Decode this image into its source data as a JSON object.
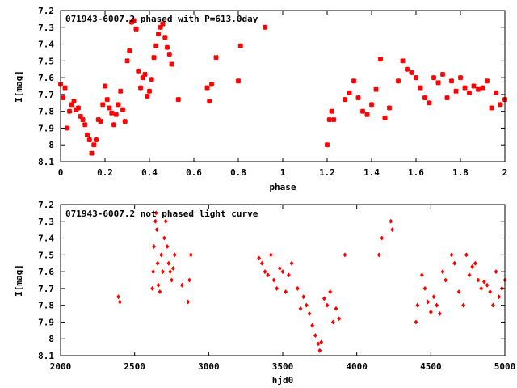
{
  "chart_data": [
    {
      "type": "scatter",
      "title": "071943-6007.2 phased with P=613.0day",
      "xlabel": "phase",
      "ylabel": "I[mag]",
      "xlim": [
        0,
        2
      ],
      "ylim": [
        7.2,
        8.1
      ],
      "y_inverted": true,
      "grid": false,
      "x_ticks": [
        "0",
        "0.2",
        "0.4",
        "0.6",
        "0.8",
        "1",
        "1.2",
        "1.4",
        "1.6",
        "1.8",
        "2"
      ],
      "y_ticks": [
        "7.2",
        "7.3",
        "7.4",
        "7.5",
        "7.6",
        "7.7",
        "7.8",
        "7.9",
        "8",
        "8.1"
      ],
      "marker_color": "#ff0000",
      "marker": "asterisk",
      "series": [
        {
          "x": [
            0.0,
            0.01,
            0.02,
            0.03,
            0.04,
            0.05,
            0.06,
            0.07,
            0.08,
            0.09,
            0.1,
            0.11,
            0.12,
            0.13,
            0.14,
            0.15,
            0.16,
            0.17,
            0.18,
            0.19,
            0.2,
            0.21,
            0.22,
            0.23,
            0.24,
            0.25,
            0.26,
            0.27,
            0.28,
            0.29,
            0.3,
            0.31,
            0.32,
            0.33,
            0.34,
            0.35,
            0.36,
            0.37,
            0.38,
            0.39,
            0.4,
            0.41,
            0.42,
            0.43,
            0.44,
            0.45,
            0.46,
            0.47,
            0.48,
            0.49,
            0.5,
            0.53,
            0.66,
            0.67,
            0.68,
            0.7,
            0.8,
            0.81,
            0.92,
            1.2,
            1.21,
            1.22,
            1.23,
            1.28,
            1.3,
            1.32,
            1.34,
            1.36,
            1.38,
            1.4,
            1.42,
            1.44,
            1.46,
            1.48,
            1.52,
            1.54,
            1.56,
            1.58,
            1.6,
            1.62,
            1.64,
            1.66,
            1.68,
            1.7,
            1.72,
            1.74,
            1.76,
            1.78,
            1.8,
            1.82,
            1.84,
            1.86,
            1.88,
            1.9,
            1.92,
            1.94,
            1.96,
            1.98,
            2.0
          ],
          "y": [
            7.64,
            7.72,
            7.66,
            7.9,
            7.8,
            7.76,
            7.74,
            7.79,
            7.78,
            7.83,
            7.85,
            7.88,
            7.94,
            7.97,
            8.05,
            8.0,
            7.97,
            7.85,
            7.86,
            7.76,
            7.65,
            7.73,
            7.78,
            7.81,
            7.88,
            7.82,
            7.76,
            7.68,
            7.79,
            7.86,
            7.5,
            7.44,
            7.27,
            7.26,
            7.31,
            7.56,
            7.66,
            7.6,
            7.58,
            7.71,
            7.68,
            7.61,
            7.48,
            7.41,
            7.34,
            7.3,
            7.28,
            7.36,
            7.42,
            7.46,
            7.52,
            7.73,
            7.66,
            7.74,
            7.64,
            7.48,
            7.62,
            7.41,
            7.3,
            8.0,
            7.85,
            7.8,
            7.85,
            7.73,
            7.69,
            7.62,
            7.72,
            7.8,
            7.82,
            7.76,
            7.67,
            7.49,
            7.84,
            7.78,
            7.62,
            7.5,
            7.55,
            7.57,
            7.6,
            7.66,
            7.72,
            7.75,
            7.6,
            7.63,
            7.58,
            7.72,
            7.62,
            7.68,
            7.6,
            7.66,
            7.69,
            7.65,
            7.67,
            7.66,
            7.62,
            7.78,
            7.69,
            7.76,
            7.73
          ]
        }
      ]
    },
    {
      "type": "scatter",
      "title": "071943-6007.2 not phased light curve",
      "xlabel": "hjd0",
      "ylabel": "I[mag]",
      "xlim": [
        2000,
        5000
      ],
      "ylim": [
        7.2,
        8.1
      ],
      "y_inverted": true,
      "grid": false,
      "x_ticks": [
        "2000",
        "2500",
        "3000",
        "3500",
        "4000",
        "4500",
        "5000"
      ],
      "y_ticks": [
        "7.2",
        "7.3",
        "7.4",
        "7.5",
        "7.6",
        "7.7",
        "7.8",
        "7.9",
        "8",
        "8.1"
      ],
      "marker_color": "#ff0000",
      "marker": "diamond",
      "series": [
        {
          "x": [
            2390,
            2400,
            2620,
            2625,
            2630,
            2640,
            2645,
            2650,
            2655,
            2660,
            2670,
            2680,
            2690,
            2700,
            2710,
            2720,
            2730,
            2740,
            2750,
            2760,
            2770,
            2820,
            2860,
            2870,
            2880,
            3340,
            3360,
            3380,
            3400,
            3420,
            3440,
            3460,
            3480,
            3500,
            3520,
            3540,
            3560,
            3600,
            3620,
            3640,
            3660,
            3680,
            3700,
            3720,
            3740,
            3750,
            3760,
            3780,
            3800,
            3820,
            3840,
            3860,
            3880,
            3920,
            4150,
            4170,
            4230,
            4240,
            4400,
            4410,
            4440,
            4460,
            4480,
            4500,
            4520,
            4540,
            4560,
            4580,
            4600,
            4640,
            4660,
            4690,
            4720,
            4740,
            4760,
            4780,
            4800,
            4820,
            4840,
            4860,
            4880,
            4900,
            4920,
            4940,
            4960,
            4980,
            5000
          ],
          "y": [
            7.75,
            7.78,
            7.7,
            7.6,
            7.45,
            7.3,
            7.25,
            7.35,
            7.55,
            7.68,
            7.72,
            7.5,
            7.6,
            7.4,
            7.3,
            7.45,
            7.55,
            7.6,
            7.65,
            7.58,
            7.5,
            7.68,
            7.78,
            7.65,
            7.5,
            7.52,
            7.55,
            7.6,
            7.62,
            7.5,
            7.65,
            7.7,
            7.58,
            7.6,
            7.72,
            7.62,
            7.55,
            7.7,
            7.82,
            7.75,
            7.8,
            7.85,
            7.92,
            7.98,
            8.03,
            8.07,
            8.02,
            7.76,
            7.8,
            7.72,
            7.9,
            7.82,
            7.88,
            7.5,
            7.5,
            7.4,
            7.3,
            7.35,
            7.9,
            7.8,
            7.62,
            7.7,
            7.78,
            7.84,
            7.75,
            7.8,
            7.85,
            7.6,
            7.65,
            7.5,
            7.55,
            7.72,
            7.8,
            7.5,
            7.62,
            7.57,
            7.55,
            7.65,
            7.7,
            7.66,
            7.68,
            7.72,
            7.8,
            7.6,
            7.75,
            7.7,
            7.65
          ]
        }
      ]
    }
  ]
}
